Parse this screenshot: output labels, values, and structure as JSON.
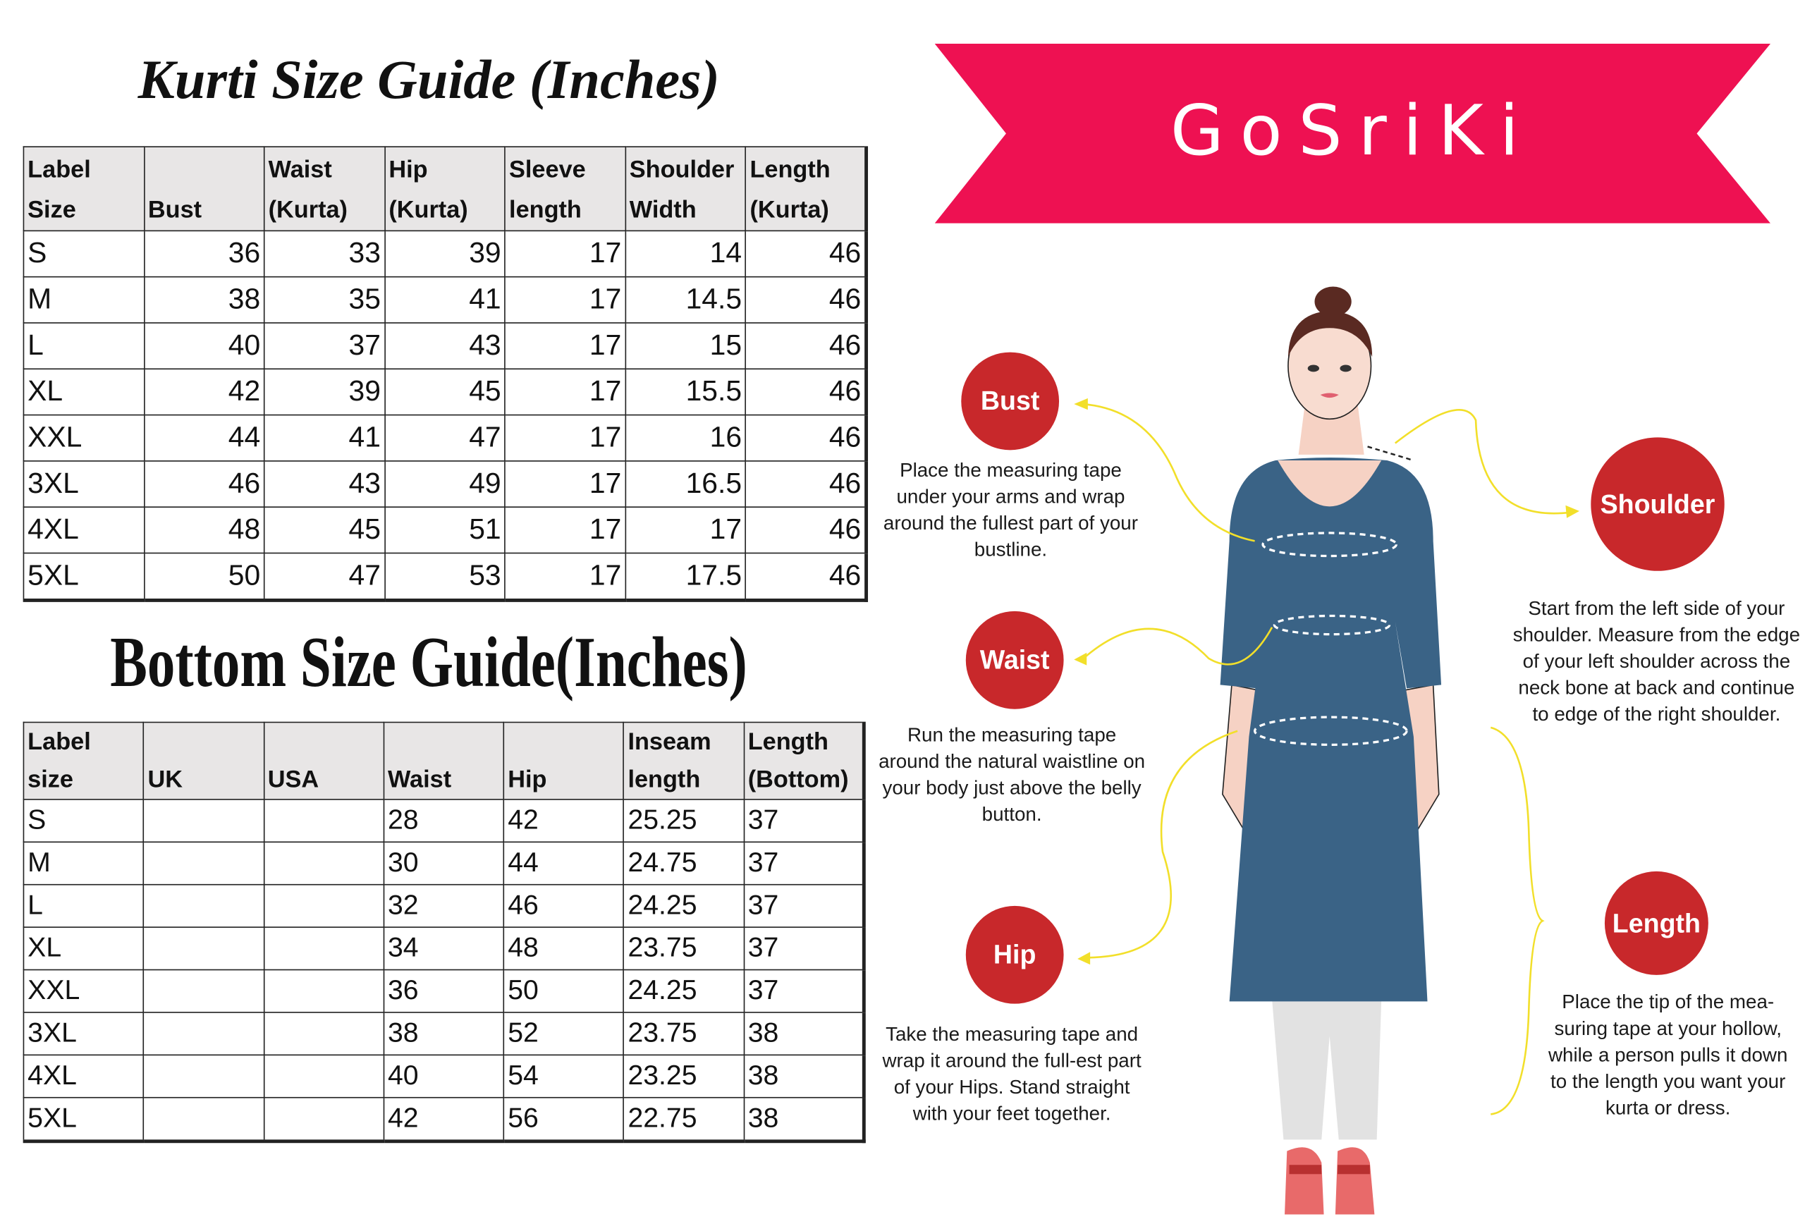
{
  "kurti": {
    "title": "Kurti Size Guide (Inches)",
    "headers": [
      "Label Size",
      "Bust",
      "Waist (Kurta)",
      "Hip (Kurta)",
      "Sleeve length",
      "Shoulder Width",
      "Length (Kurta)"
    ],
    "rows": [
      [
        "S",
        "36",
        "33",
        "39",
        "17",
        "14",
        "46"
      ],
      [
        "M",
        "38",
        "35",
        "41",
        "17",
        "14.5",
        "46"
      ],
      [
        "L",
        "40",
        "37",
        "43",
        "17",
        "15",
        "46"
      ],
      [
        "XL",
        "42",
        "39",
        "45",
        "17",
        "15.5",
        "46"
      ],
      [
        "XXL",
        "44",
        "41",
        "47",
        "17",
        "16",
        "46"
      ],
      [
        "3XL",
        "46",
        "43",
        "49",
        "17",
        "16.5",
        "46"
      ],
      [
        "4XL",
        "48",
        "45",
        "51",
        "17",
        "17",
        "46"
      ],
      [
        "5XL",
        "50",
        "47",
        "53",
        "17",
        "17.5",
        "46"
      ]
    ]
  },
  "bottom": {
    "title": "Bottom Size Guide(Inches)",
    "headers": [
      "Label size",
      "UK",
      "USA",
      "Waist",
      "Hip",
      "Inseam length",
      "Length (Bottom)"
    ],
    "rows": [
      [
        "S",
        "",
        "",
        "28",
        "42",
        "25.25",
        "37"
      ],
      [
        "M",
        "",
        "",
        "30",
        "44",
        "24.75",
        "37"
      ],
      [
        "L",
        "",
        "",
        "32",
        "46",
        "24.25",
        "37"
      ],
      [
        "XL",
        "",
        "",
        "34",
        "48",
        "23.75",
        "37"
      ],
      [
        "XXL",
        "",
        "",
        "36",
        "50",
        "24.25",
        "37"
      ],
      [
        "3XL",
        "",
        "",
        "38",
        "52",
        "23.75",
        "38"
      ],
      [
        "4XL",
        "",
        "",
        "40",
        "54",
        "23.25",
        "38"
      ],
      [
        "5XL",
        "",
        "",
        "42",
        "56",
        "22.75",
        "38"
      ]
    ]
  },
  "brand": {
    "name": "GoSriKi",
    "color": "#ee1152"
  },
  "measures": {
    "bust": {
      "label": "Bust",
      "text": "Place the measuring tape under your arms and wrap around the fullest part of your bustline."
    },
    "waist": {
      "label": "Waist",
      "text": "Run the measuring tape around the natural waistline on your body just above the belly button."
    },
    "hip": {
      "label": "Hip",
      "text": "Take the measuring tape and wrap it around the full-est part of your Hips. Stand straight with your feet together."
    },
    "shoulder": {
      "label": "Shoulder",
      "text": "Start from the left side of your shoulder. Measure from the edge of your left shoulder across the neck bone at back and continue to edge of the right shoulder."
    },
    "length": {
      "label": "Length",
      "text": "Place the tip of the mea-suring tape at your hollow, while a person pulls it down to the length you want your kurta or dress."
    }
  },
  "colors": {
    "circle": "#c8282b",
    "kurta": "#3a6386",
    "guide_line": "#f2df2a"
  }
}
